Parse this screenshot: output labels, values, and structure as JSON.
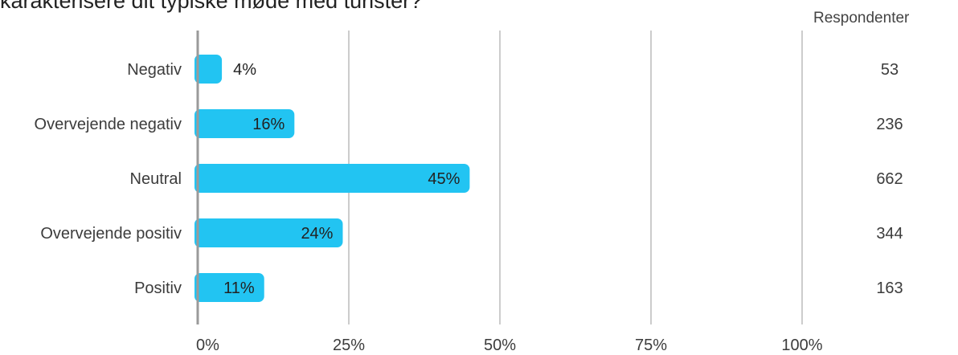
{
  "title": "karakterisere dit typiske møde med turister?",
  "respondents_header": "Respondenter",
  "chart_data": {
    "type": "bar",
    "orientation": "horizontal",
    "title": "karakterisere dit typiske møde med turister?",
    "categories": [
      "Negativ",
      "Overvejende negativ",
      "Neutral",
      "Overvejende positiv",
      "Positiv"
    ],
    "values": [
      4,
      16,
      45,
      24,
      11
    ],
    "value_labels": [
      "4%",
      "16%",
      "45%",
      "24%",
      "11%"
    ],
    "respondents": [
      "53",
      "236",
      "662",
      "344",
      "163"
    ],
    "xlim": [
      0,
      100
    ],
    "ticks": [
      0,
      25,
      50,
      75,
      100
    ],
    "tick_labels": [
      "0%",
      "25%",
      "50%",
      "75%",
      "100%"
    ],
    "grid": true,
    "bar_color": "#22c4f2"
  }
}
